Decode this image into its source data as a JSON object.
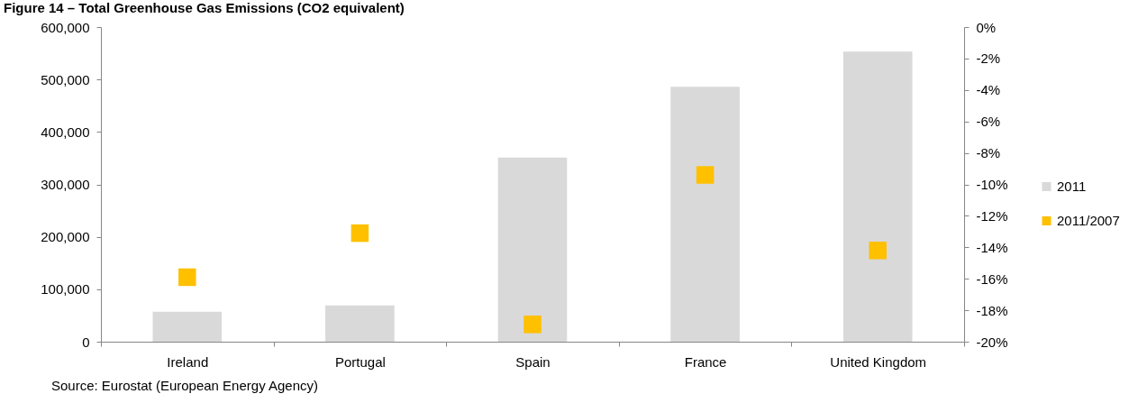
{
  "chart_data": {
    "type": "bar",
    "title": "Figure 14 – Total Greenhouse Gas Emissions (CO2 equivalent)",
    "categories": [
      "Ireland",
      "Portugal",
      "Spain",
      "France",
      "United Kingdom"
    ],
    "series": [
      {
        "name": "2011",
        "color": "#d9d9d9",
        "values": [
          57000,
          69000,
          351000,
          486000,
          553000
        ]
      },
      {
        "name": "2011/2007",
        "type": "scatter",
        "axis": "y2",
        "marker": "square",
        "color": "#ffc000",
        "values": [
          -15.9,
          -13.1,
          -18.9,
          -9.4,
          -14.2
        ]
      }
    ],
    "ylim": [
      0,
      600000
    ],
    "yticks": [
      0,
      {
        "value": 100000,
        "label": "100,000"
      },
      {
        "value": 200000,
        "label": "200,000"
      },
      {
        "value": 300000,
        "label": "300,000"
      },
      {
        "value": 400000,
        "label": "400,000"
      },
      {
        "value": 500000,
        "label": "500,000"
      },
      {
        "value": 600000,
        "label": "600,000"
      }
    ],
    "y2lim": [
      -20,
      0
    ],
    "y2ticks": [
      {
        "value": 0,
        "label": "0%"
      },
      {
        "value": -2,
        "label": "-2%"
      },
      {
        "value": -4,
        "label": "-4%"
      },
      {
        "value": -6,
        "label": "-6%"
      },
      {
        "value": -8,
        "label": "-8%"
      },
      {
        "value": -10,
        "label": "-10%"
      },
      {
        "value": -12,
        "label": "-12%"
      },
      {
        "value": -14,
        "label": "-14%"
      },
      {
        "value": -16,
        "label": "-16%"
      },
      {
        "value": -18,
        "label": "-18%"
      },
      {
        "value": -20,
        "label": "-20%"
      }
    ],
    "legend": "right",
    "annotations": [
      "Source: Eurostat (European Energy Agency)"
    ]
  }
}
